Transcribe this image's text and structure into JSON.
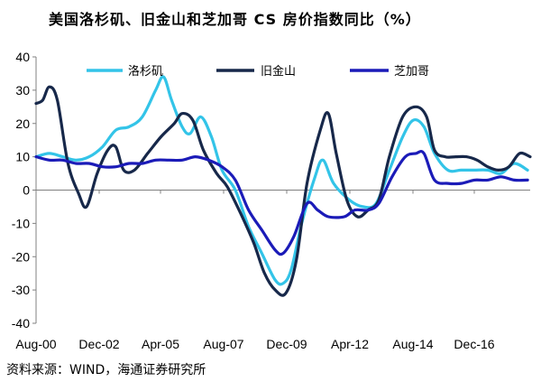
{
  "title": "美国洛杉矶、旧金山和芝加哥 CS 房价指数同比（%）",
  "source": "资料来源：WIND，海通证券研究所",
  "colors": {
    "los_angeles": "#33c4e8",
    "san_francisco": "#17284a",
    "chicago": "#1b1bb8",
    "axis": "#808080"
  },
  "chart_data": {
    "type": "line",
    "title": "美国洛杉矶、旧金山和芝加哥 CS 房价指数同比（%）",
    "xlabel": "",
    "ylabel": "",
    "x_ticks": [
      "Aug-00",
      "Dec-02",
      "Apr-05",
      "Aug-07",
      "Dec-09",
      "Apr-12",
      "Aug-14",
      "Dec-16"
    ],
    "ylim": [
      -40,
      40
    ],
    "y_ticks": [
      40,
      30,
      20,
      10,
      0,
      -10,
      -20,
      -30,
      -40
    ],
    "grid": false,
    "legend_position": "top",
    "x_range": [
      2000.0,
      2018.6
    ],
    "series": [
      {
        "name": "洛杉矶",
        "color": "#33c4e8",
        "points": [
          [
            2000.0,
            10
          ],
          [
            2000.5,
            11
          ],
          [
            2001.0,
            10
          ],
          [
            2001.5,
            9
          ],
          [
            2002.0,
            10
          ],
          [
            2002.5,
            13
          ],
          [
            2003.0,
            18
          ],
          [
            2003.5,
            19
          ],
          [
            2004.0,
            22
          ],
          [
            2004.5,
            30
          ],
          [
            2004.8,
            34
          ],
          [
            2005.1,
            27
          ],
          [
            2005.5,
            19
          ],
          [
            2005.8,
            17
          ],
          [
            2006.2,
            22
          ],
          [
            2006.6,
            16
          ],
          [
            2007.0,
            6
          ],
          [
            2007.5,
            0
          ],
          [
            2008.0,
            -11
          ],
          [
            2008.5,
            -19
          ],
          [
            2009.0,
            -27
          ],
          [
            2009.3,
            -28
          ],
          [
            2009.6,
            -24
          ],
          [
            2010.0,
            -10
          ],
          [
            2010.5,
            4
          ],
          [
            2010.8,
            9
          ],
          [
            2011.2,
            2
          ],
          [
            2011.8,
            -3
          ],
          [
            2012.3,
            -5
          ],
          [
            2012.8,
            -4
          ],
          [
            2013.3,
            6
          ],
          [
            2013.8,
            16
          ],
          [
            2014.2,
            21
          ],
          [
            2014.6,
            19
          ],
          [
            2015.0,
            11
          ],
          [
            2015.5,
            6
          ],
          [
            2016.0,
            6
          ],
          [
            2016.5,
            6
          ],
          [
            2017.0,
            6
          ],
          [
            2017.5,
            5
          ],
          [
            2018.0,
            8
          ],
          [
            2018.5,
            6
          ]
        ]
      },
      {
        "name": "旧金山",
        "color": "#17284a",
        "points": [
          [
            2000.0,
            26
          ],
          [
            2000.25,
            27
          ],
          [
            2000.5,
            31
          ],
          [
            2000.8,
            27
          ],
          [
            2001.2,
            8
          ],
          [
            2001.6,
            -1
          ],
          [
            2001.9,
            -5
          ],
          [
            2002.3,
            5
          ],
          [
            2002.7,
            12
          ],
          [
            2003.0,
            13
          ],
          [
            2003.3,
            6
          ],
          [
            2003.7,
            6
          ],
          [
            2004.2,
            11
          ],
          [
            2004.7,
            16
          ],
          [
            2005.2,
            20
          ],
          [
            2005.5,
            23
          ],
          [
            2005.9,
            21
          ],
          [
            2006.3,
            12
          ],
          [
            2006.8,
            5
          ],
          [
            2007.2,
            1
          ],
          [
            2007.7,
            -7
          ],
          [
            2008.2,
            -16
          ],
          [
            2008.6,
            -25
          ],
          [
            2009.0,
            -30
          ],
          [
            2009.4,
            -31
          ],
          [
            2009.8,
            -21
          ],
          [
            2010.2,
            2
          ],
          [
            2010.7,
            18
          ],
          [
            2011.0,
            23
          ],
          [
            2011.3,
            11
          ],
          [
            2011.7,
            -3
          ],
          [
            2012.1,
            -8
          ],
          [
            2012.5,
            -6
          ],
          [
            2012.9,
            -3
          ],
          [
            2013.3,
            10
          ],
          [
            2013.8,
            22
          ],
          [
            2014.3,
            25
          ],
          [
            2014.7,
            22
          ],
          [
            2015.0,
            12
          ],
          [
            2015.4,
            10
          ],
          [
            2015.8,
            10
          ],
          [
            2016.2,
            10
          ],
          [
            2016.6,
            9
          ],
          [
            2017.0,
            7
          ],
          [
            2017.4,
            6
          ],
          [
            2017.8,
            7
          ],
          [
            2018.2,
            11
          ],
          [
            2018.6,
            10
          ]
        ]
      },
      {
        "name": "芝加哥",
        "color": "#1b1bb8",
        "points": [
          [
            2000.0,
            10
          ],
          [
            2000.5,
            9
          ],
          [
            2001.0,
            9
          ],
          [
            2001.5,
            8
          ],
          [
            2002.0,
            8
          ],
          [
            2002.5,
            7
          ],
          [
            2003.0,
            7
          ],
          [
            2003.5,
            8
          ],
          [
            2004.0,
            8
          ],
          [
            2004.5,
            9
          ],
          [
            2005.0,
            9
          ],
          [
            2005.5,
            9
          ],
          [
            2006.0,
            10
          ],
          [
            2006.5,
            9
          ],
          [
            2007.0,
            7
          ],
          [
            2007.5,
            3
          ],
          [
            2008.0,
            -6
          ],
          [
            2008.5,
            -12
          ],
          [
            2009.0,
            -18
          ],
          [
            2009.3,
            -19
          ],
          [
            2009.7,
            -14
          ],
          [
            2010.2,
            -4
          ],
          [
            2010.6,
            -6
          ],
          [
            2011.0,
            -8
          ],
          [
            2011.6,
            -8
          ],
          [
            2012.0,
            -6
          ],
          [
            2012.5,
            -6
          ],
          [
            2012.9,
            -4
          ],
          [
            2013.4,
            4
          ],
          [
            2013.9,
            10
          ],
          [
            2014.3,
            11
          ],
          [
            2014.6,
            11
          ],
          [
            2015.0,
            3
          ],
          [
            2015.5,
            2
          ],
          [
            2016.0,
            2
          ],
          [
            2016.5,
            3
          ],
          [
            2017.0,
            3
          ],
          [
            2017.5,
            4
          ],
          [
            2018.0,
            3
          ],
          [
            2018.5,
            3
          ]
        ]
      }
    ]
  }
}
